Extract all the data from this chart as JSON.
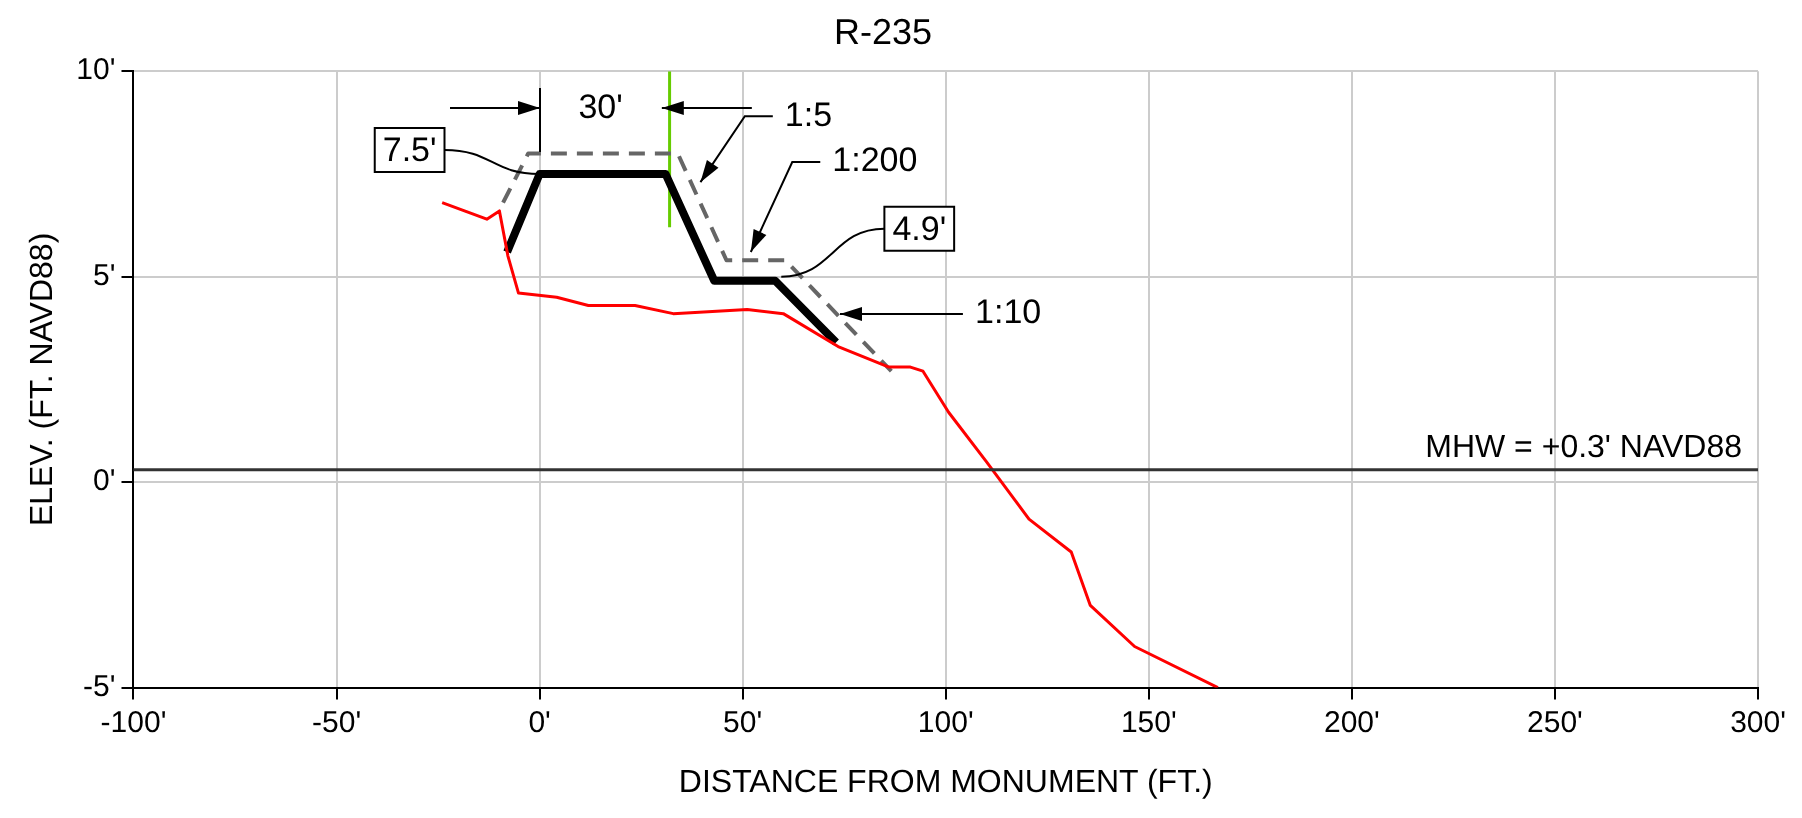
{
  "chart_data": {
    "type": "line",
    "title": "R-235",
    "xlabel": "DISTANCE FROM MONUMENT (FT.)",
    "ylabel": "ELEV. (FT. NAVD88)",
    "xlim": [
      -100,
      300
    ],
    "xticks": [
      {
        "value": -100,
        "label": "-100'"
      },
      {
        "value": -50,
        "label": "-50'"
      },
      {
        "value": 0,
        "label": "0'"
      },
      {
        "value": 50,
        "label": "50'"
      },
      {
        "value": 100,
        "label": "100'"
      },
      {
        "value": 150,
        "label": "150'"
      },
      {
        "value": 200,
        "label": "200'"
      },
      {
        "value": 250,
        "label": "250'"
      },
      {
        "value": 300,
        "label": "300'"
      }
    ],
    "ylim": [
      -5,
      10
    ],
    "yticks": [
      {
        "value": -5,
        "label": "-5'"
      },
      {
        "value": 0,
        "label": "0'"
      },
      {
        "value": 5,
        "label": "5'"
      },
      {
        "value": 10,
        "label": "10'"
      }
    ],
    "grid": true,
    "legend": false,
    "marker": "none",
    "series": [
      {
        "color": "#ff0000",
        "x": [
          -24,
          -13,
          -9.9,
          -7.8,
          -5.2,
          4.2,
          12,
          23.5,
          32.9,
          51.1,
          60,
          73.5,
          86,
          91.3,
          94.4,
          100.7,
          110,
          120.5,
          130.9,
          135.6,
          146.5,
          167
        ],
        "values": [
          6.8,
          6.4,
          6.6,
          5.5,
          4.6,
          4.5,
          4.3,
          4.3,
          4.1,
          4.2,
          4.1,
          3.3,
          2.8,
          2.8,
          2.7,
          1.7,
          0.5,
          -0.9,
          -1.7,
          -3.0,
          -4.0,
          -5.0
        ]
      },
      {
        "color": "#666666",
        "line_style": "dashed",
        "x": [
          -9,
          -2.8,
          34,
          46,
          60.5,
          86.6
        ],
        "values": [
          6.8,
          8.0,
          8.0,
          5.4,
          5.4,
          2.7
        ]
      },
      {
        "color": "#000000",
        "x": [
          -8,
          0,
          31,
          43,
          58,
          73
        ],
        "values": [
          5.6,
          7.5,
          7.5,
          4.9,
          4.9,
          3.4
        ]
      },
      {
        "color": "#66cc00",
        "x": [
          32,
          32
        ],
        "values": [
          6.2,
          10
        ]
      }
    ],
    "ref_lines": [
      {
        "axis": "y",
        "value": 0.3,
        "label": "MHW = +0.3' NAVD88",
        "color": "#333333"
      }
    ],
    "annotations": [
      {
        "text": "7.5'",
        "x": 0,
        "y": 7.5
      },
      "30'",
      {
        "text": "1:5",
        "x": 39.6,
        "y": 7.3
      },
      {
        "text": "1:200",
        "x": 52,
        "y": 5.6
      },
      {
        "text": "4.9'",
        "x": 59.5,
        "y": 5.0
      },
      "1:10"
    ]
  }
}
